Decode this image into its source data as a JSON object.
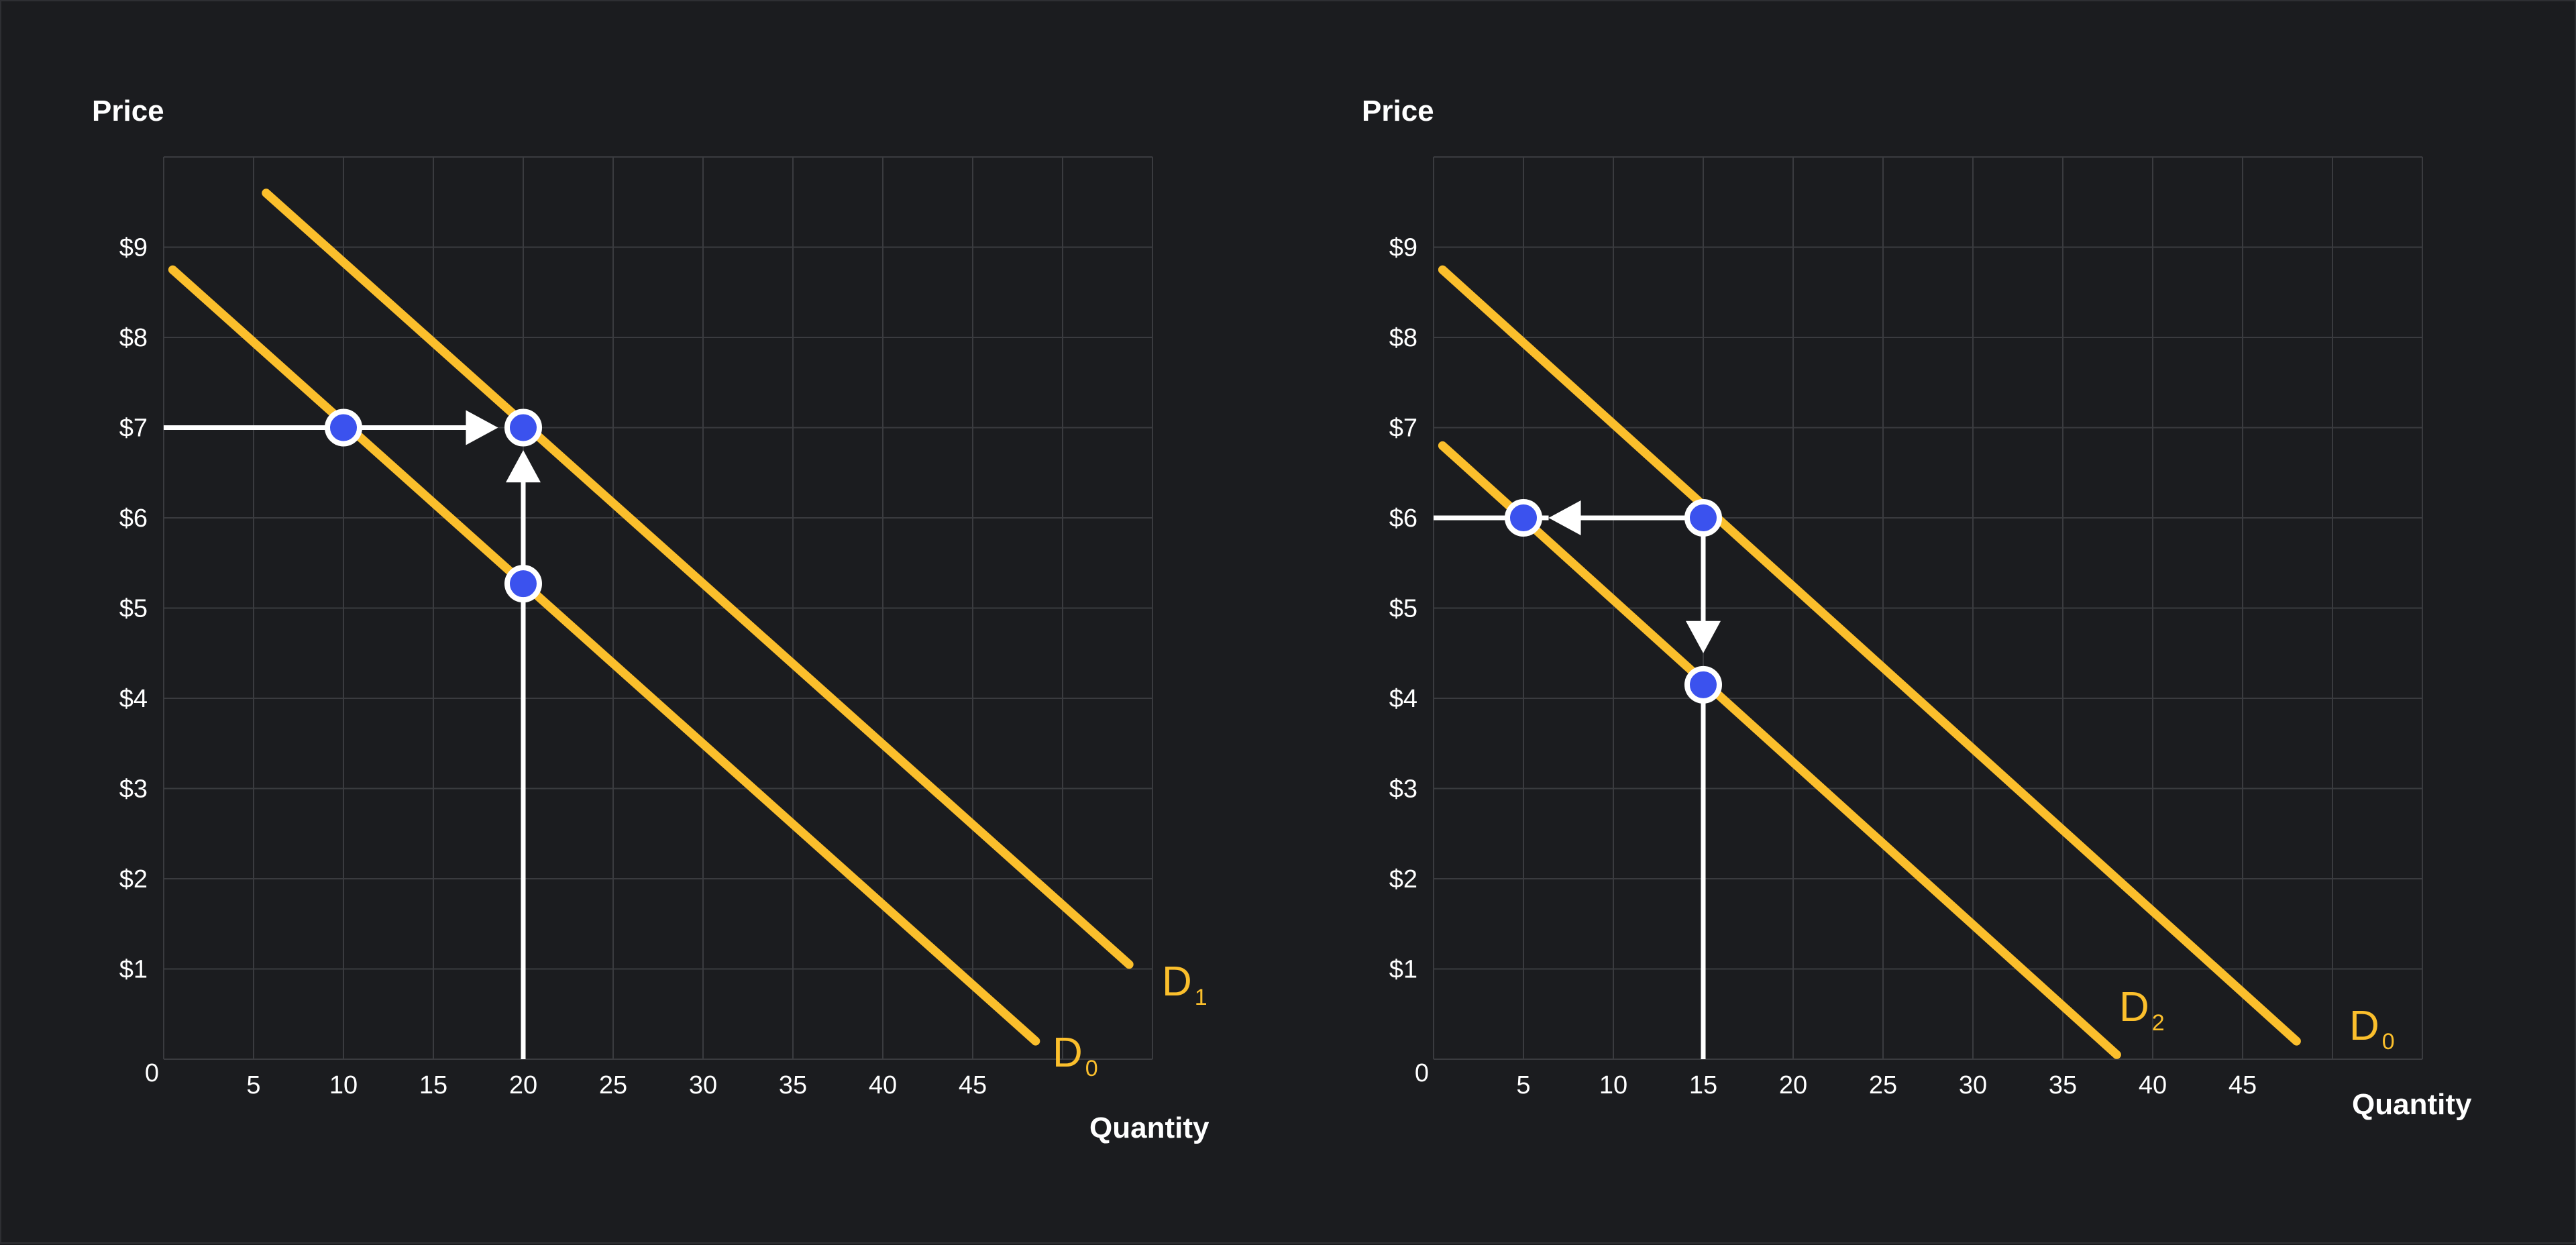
{
  "colors": {
    "background": "#1b1c1f",
    "grid": "#3a3b3f",
    "curve": "#fbbf2c",
    "arrow": "#ffffff",
    "point_fill": "#3b52ee",
    "point_stroke": "#ffffff"
  },
  "chart_data": [
    {
      "type": "line",
      "title": "",
      "ylabel": "Price",
      "xlabel": "Quantity",
      "xlim": [
        0,
        55
      ],
      "ylim": [
        0,
        10
      ],
      "xticks": [
        5,
        10,
        15,
        20,
        25,
        30,
        35,
        40,
        45
      ],
      "yticks": [
        1,
        2,
        3,
        4,
        5,
        6,
        7,
        8,
        9
      ],
      "ytick_prefix": "$",
      "origin_label": "0",
      "grid": true,
      "series": [
        {
          "name": "D",
          "subscript": "0",
          "x": [
            0.5,
            48.5
          ],
          "y": [
            8.75,
            0.2
          ]
        },
        {
          "name": "D",
          "subscript": "1",
          "x": [
            5.7,
            53.7
          ],
          "y": [
            9.6,
            1.05
          ]
        }
      ],
      "points": [
        {
          "x": 10,
          "y": 7
        },
        {
          "x": 20,
          "y": 7
        },
        {
          "x": 20,
          "y": 5.27
        }
      ],
      "arrows": [
        {
          "from": [
            0,
            7
          ],
          "to": [
            18.6,
            7
          ],
          "head": true
        },
        {
          "from": [
            20,
            0
          ],
          "to": [
            20,
            6.75
          ],
          "head": true
        }
      ]
    },
    {
      "type": "line",
      "title": "",
      "ylabel": "Price",
      "xlabel": "Quantity",
      "xlim": [
        0,
        55
      ],
      "ylim": [
        0,
        10
      ],
      "xticks": [
        5,
        10,
        15,
        20,
        25,
        30,
        35,
        40,
        45
      ],
      "yticks": [
        1,
        2,
        3,
        4,
        5,
        6,
        7,
        8,
        9
      ],
      "ytick_prefix": "$",
      "origin_label": "0",
      "grid": true,
      "series": [
        {
          "name": "D",
          "subscript": "0",
          "x": [
            0.5,
            48.0
          ],
          "y": [
            8.75,
            0.2
          ]
        },
        {
          "name": "D",
          "subscript": "2",
          "x": [
            0.5,
            38.0
          ],
          "y": [
            6.8,
            0.05
          ]
        }
      ],
      "points": [
        {
          "x": 15,
          "y": 6
        },
        {
          "x": 5,
          "y": 6
        },
        {
          "x": 15,
          "y": 4.15
        }
      ],
      "arrows": [
        {
          "from": [
            15,
            6
          ],
          "to": [
            6.4,
            6
          ],
          "head": true
        },
        {
          "from": [
            0,
            6
          ],
          "to": [
            6.4,
            6
          ],
          "head": false
        },
        {
          "from": [
            15,
            6
          ],
          "to": [
            15,
            4.5
          ],
          "head": true
        },
        {
          "from": [
            15,
            0
          ],
          "to": [
            15,
            4.15
          ],
          "head": false
        }
      ]
    }
  ]
}
